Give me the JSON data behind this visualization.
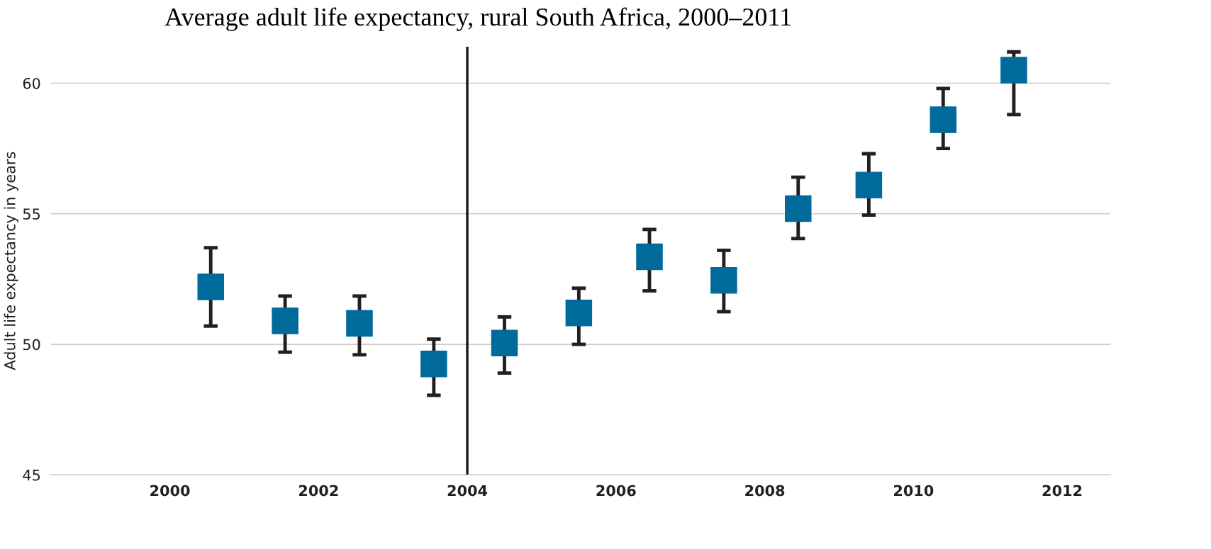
{
  "chart_data": {
    "type": "scatter",
    "title": "Average adult life expectancy, rural South Africa, 2000–2011",
    "ylabel": "Adult life expectancy in years",
    "x": [
      2000.55,
      2001.55,
      2002.55,
      2003.55,
      2004.5,
      2005.5,
      2006.45,
      2007.45,
      2008.45,
      2009.4,
      2010.4,
      2011.35
    ],
    "values": [
      52.2,
      50.9,
      50.8,
      49.25,
      50.05,
      51.2,
      53.35,
      52.45,
      55.2,
      56.1,
      58.6,
      60.5
    ],
    "errors": [
      [
        50.7,
        53.7
      ],
      [
        49.7,
        51.85
      ],
      [
        49.6,
        51.85
      ],
      [
        48.05,
        50.2
      ],
      [
        48.9,
        51.05
      ],
      [
        50.0,
        52.15
      ],
      [
        52.05,
        54.4
      ],
      [
        51.25,
        53.6
      ],
      [
        54.05,
        56.4
      ],
      [
        54.95,
        57.3
      ],
      [
        57.5,
        59.8
      ],
      [
        58.8,
        61.2
      ]
    ],
    "color": "#006a9a",
    "marker": "square",
    "xlim": [
      1998.4,
      2012.65
    ],
    "ylim": [
      45,
      61.4
    ],
    "xticks": [
      2000,
      2002,
      2004,
      2006,
      2008,
      2010,
      2012
    ],
    "yticks": [
      45,
      50,
      55,
      60
    ],
    "grid": "y",
    "ref_lines": [
      {
        "axis": "x",
        "value": 2004,
        "color": "#1a1a1a"
      }
    ]
  }
}
